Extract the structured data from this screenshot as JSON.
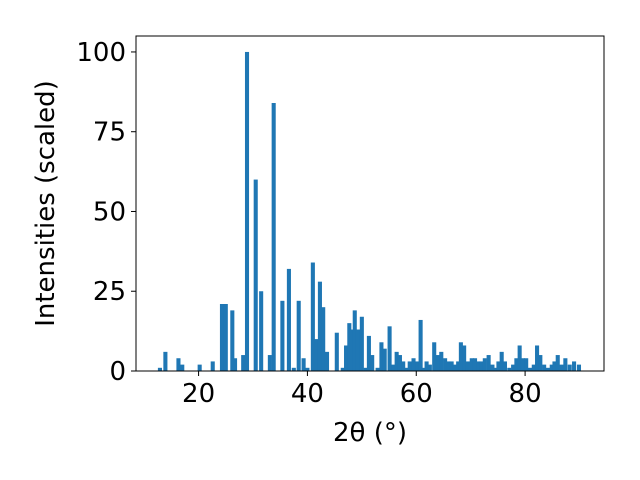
{
  "chart_data": {
    "type": "bar",
    "title": "",
    "xlabel": "2θ (°)",
    "ylabel": "Intensities (scaled)",
    "xlim": [
      8.5,
      94.5
    ],
    "ylim": [
      0,
      105
    ],
    "xticks": [
      20,
      40,
      60,
      80
    ],
    "yticks": [
      0,
      25,
      50,
      75,
      100
    ],
    "xtick_labels": [
      "20",
      "40",
      "60",
      "80"
    ],
    "ytick_labels": [
      "0",
      "25",
      "50",
      "75",
      "100"
    ],
    "bar_width": 0.75,
    "grid": false,
    "legend": "none",
    "color": "#1f77b4",
    "x": [
      12.9,
      13.9,
      16.3,
      17.0,
      20.2,
      22.6,
      24.3,
      25.0,
      26.2,
      26.7,
      28.2,
      28.9,
      30.5,
      31.5,
      33.1,
      33.8,
      35.4,
      36.6,
      37.5,
      38.4,
      39.3,
      40.0,
      41.0,
      41.6,
      42.3,
      42.9,
      43.6,
      45.4,
      46.5,
      47.1,
      47.7,
      48.2,
      48.7,
      49.3,
      50.0,
      50.7,
      51.3,
      51.9,
      52.9,
      53.6,
      54.2,
      55.1,
      55.8,
      56.4,
      57.0,
      57.6,
      58.2,
      58.8,
      59.5,
      60.2,
      60.8,
      61.3,
      61.9,
      62.5,
      63.3,
      64.0,
      64.6,
      65.3,
      65.9,
      66.5,
      67.1,
      67.7,
      68.2,
      68.8,
      69.5,
      70.2,
      70.8,
      71.4,
      72.0,
      72.6,
      73.3,
      74.0,
      74.6,
      75.1,
      75.7,
      76.3,
      77.1,
      77.8,
      78.4,
      79.0,
      79.6,
      80.2,
      80.9,
      81.6,
      82.2,
      82.8,
      83.5,
      84.2,
      84.9,
      85.4,
      86.0,
      86.7,
      87.4,
      88.2,
      89.0,
      89.9
    ],
    "values": [
      1,
      6,
      4,
      2,
      2,
      3,
      21,
      21,
      19,
      4,
      5,
      100,
      60,
      25,
      5,
      84,
      22,
      32,
      1,
      22,
      4,
      1,
      34,
      10,
      28,
      20,
      6,
      12,
      1,
      8,
      15,
      13,
      19,
      13,
      17,
      1,
      11,
      5,
      1,
      9,
      7,
      14,
      2,
      6,
      5,
      3,
      1,
      3,
      4,
      3,
      16,
      1,
      3,
      2,
      9,
      5,
      6,
      4,
      3,
      3,
      2,
      3,
      9,
      8,
      3,
      4,
      4,
      3,
      3,
      4,
      5,
      2,
      1,
      3,
      6,
      3,
      1,
      2,
      4,
      8,
      4,
      4,
      1,
      2,
      8,
      5,
      2,
      1,
      2,
      3,
      5,
      2,
      4,
      2,
      3,
      2
    ]
  }
}
